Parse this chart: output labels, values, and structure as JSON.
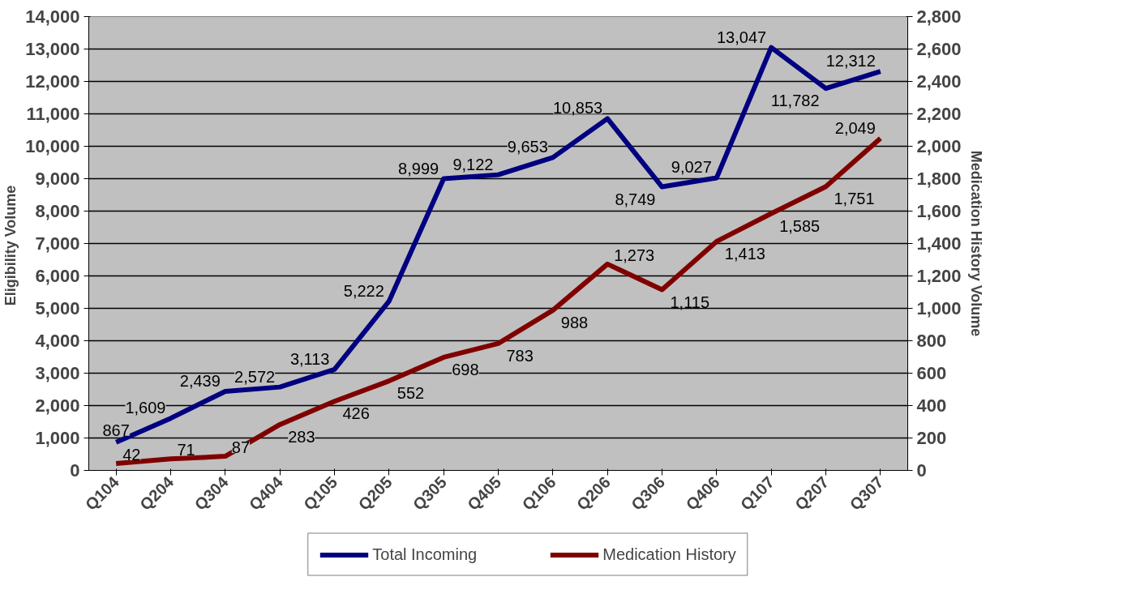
{
  "chart_data": {
    "type": "line",
    "categories": [
      "Q104",
      "Q204",
      "Q304",
      "Q404",
      "Q105",
      "Q205",
      "Q305",
      "Q405",
      "Q106",
      "Q206",
      "Q306",
      "Q406",
      "Q107",
      "Q207",
      "Q307"
    ],
    "series": [
      {
        "name": "Total Incoming",
        "color": "#000080",
        "values": [
          867,
          1609,
          2439,
          2572,
          3113,
          5222,
          8999,
          9122,
          9653,
          10853,
          8749,
          9027,
          13047,
          11782,
          12312
        ],
        "value_labels": [
          "867",
          "1,609",
          "2,439",
          "2,572",
          "3,113",
          "5,222",
          "8,999",
          "9,122",
          "9,653",
          "10,853",
          "8,749",
          "9,027",
          "13,047",
          "11,782",
          "12,312"
        ]
      },
      {
        "name": "Medication History",
        "color": "#800000",
        "axis": "y2",
        "values": [
          42,
          71,
          87,
          283,
          426,
          552,
          698,
          783,
          988,
          1273,
          1115,
          1413,
          1585,
          1751,
          2049
        ],
        "value_labels": [
          "42",
          "71",
          "87",
          "283",
          "426",
          "552",
          "698",
          "783",
          "988",
          "1,273",
          "1,115",
          "1,413",
          "1,585",
          "1,751",
          "2,049"
        ]
      }
    ],
    "ylabel": "Eligibility  Volume",
    "y2label": "Medication History Volume",
    "ylim": [
      0,
      14000
    ],
    "yticks": [
      0,
      {
        "value": 1000,
        "label": "1,000"
      },
      {
        "value": 2000,
        "label": "2,000"
      },
      {
        "value": 3000,
        "label": "3,000"
      },
      {
        "value": 4000,
        "label": "4,000"
      },
      {
        "value": 5000,
        "label": "5,000"
      },
      {
        "value": 6000,
        "label": "6,000"
      },
      {
        "value": 7000,
        "label": "7,000"
      },
      {
        "value": 8000,
        "label": "8,000"
      },
      {
        "value": 9000,
        "label": "9,000"
      },
      {
        "value": 10000,
        "label": "10,000"
      },
      {
        "value": 11000,
        "label": "11,000"
      },
      {
        "value": 12000,
        "label": "12,000"
      },
      {
        "value": 13000,
        "label": "13,000"
      },
      {
        "value": 14000,
        "label": "14,000"
      }
    ],
    "y2lim": [
      0,
      2800
    ],
    "y2ticks": [
      0,
      200,
      400,
      600,
      800,
      {
        "value": 1000,
        "label": "1,000"
      },
      {
        "value": 1200,
        "label": "1,200"
      },
      {
        "value": 1400,
        "label": "1,400"
      },
      {
        "value": 1600,
        "label": "1,600"
      },
      {
        "value": 1800,
        "label": "1,800"
      },
      {
        "value": 2000,
        "label": "2,000"
      },
      {
        "value": 2200,
        "label": "2,200"
      },
      {
        "value": 2400,
        "label": "2,400"
      },
      {
        "value": 2600,
        "label": "2,600"
      },
      {
        "value": 2800,
        "label": "2,800"
      }
    ],
    "grid": "y",
    "legend": "bottom",
    "marker": "none",
    "line_style": "solid"
  }
}
